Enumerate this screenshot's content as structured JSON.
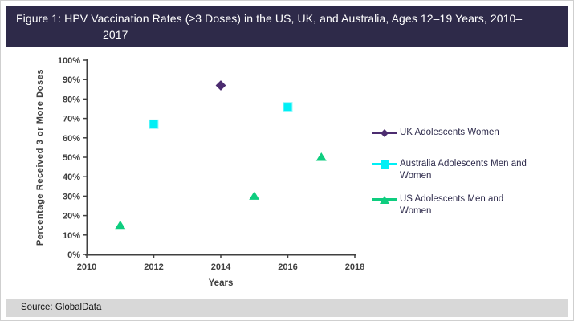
{
  "title": {
    "full": "Figure 1: HPV Vaccination Rates (≥3 Doses) in the US, UK, and Australia, Ages 12–19 Years, 2010–2017",
    "line1": "Figure 1: HPV Vaccination Rates (≥3 Doses) in the US, UK, and Australia, Ages 12–19 Years, 2010–",
    "line2": "2017"
  },
  "source": {
    "label": "Source: GlobalData"
  },
  "colors": {
    "title_bar_bg": "#2E2A49",
    "title_text": "#FFFFFF",
    "axis": "#404040",
    "tick_label": "#3F3F3F",
    "legend_text": "#2E2B4C",
    "source_bar_bg": "#D8D8D8",
    "uk_purple": "#4C2C70",
    "australia_cyan": "#00EFF5",
    "us_green": "#0ECD7F"
  },
  "chart_data": {
    "type": "scatter",
    "xlabel": "Years",
    "ylabel": "Percentage Received 3 or More Doses",
    "xlim": [
      2010,
      2018
    ],
    "ylim": [
      0,
      100
    ],
    "x_ticks": [
      2010,
      2012,
      2014,
      2016,
      2018
    ],
    "y_tick_step": 10,
    "y_tick_suffix": "%",
    "grid": false,
    "legend_position": "right",
    "series": [
      {
        "name": "UK Adolescents Women",
        "marker": "diamond",
        "color": "#4C2C70",
        "points": [
          {
            "x": 2014,
            "y": 87
          }
        ]
      },
      {
        "name": "Australia Adolescents Men and Women",
        "marker": "square",
        "color": "#00EFF5",
        "points": [
          {
            "x": 2012,
            "y": 67
          },
          {
            "x": 2016,
            "y": 76
          }
        ]
      },
      {
        "name": "US Adolescents Men and Women",
        "marker": "triangle",
        "color": "#0ECD7F",
        "points": [
          {
            "x": 2011,
            "y": 15
          },
          {
            "x": 2015,
            "y": 30
          },
          {
            "x": 2017,
            "y": 50
          }
        ]
      }
    ]
  },
  "legend": {
    "items": [
      {
        "line1": "UK Adolescents Women",
        "line2": ""
      },
      {
        "line1": "Australia Adolescents Men and",
        "line2": "Women"
      },
      {
        "line1": "US Adolescents Men and",
        "line2": "Women"
      }
    ]
  }
}
